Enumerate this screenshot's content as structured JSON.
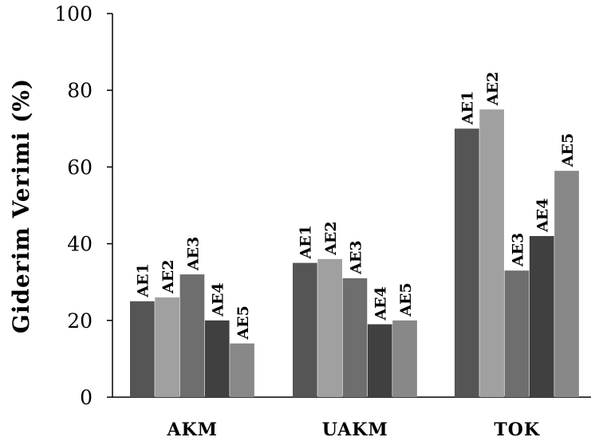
{
  "chart_data": {
    "type": "bar",
    "ylabel": "Giderim Verimi (%)",
    "xlabel": "",
    "ylim": [
      0,
      100
    ],
    "yticks": [
      0,
      20,
      40,
      60,
      80,
      100
    ],
    "categories": [
      "AKM",
      "UAKM",
      "TOK"
    ],
    "series": [
      {
        "name": "AE1",
        "color": "#555555",
        "values": [
          25,
          35,
          70
        ]
      },
      {
        "name": "AE2",
        "color": "#a0a0a0",
        "values": [
          26,
          36,
          75
        ]
      },
      {
        "name": "AE3",
        "color": "#6e6e6e",
        "values": [
          32,
          31,
          33
        ]
      },
      {
        "name": "AE4",
        "color": "#404040",
        "values": [
          20,
          19,
          42
        ]
      },
      {
        "name": "AE5",
        "color": "#888888",
        "values": [
          14,
          20,
          59
        ]
      }
    ],
    "grid": false,
    "legend": "none"
  }
}
